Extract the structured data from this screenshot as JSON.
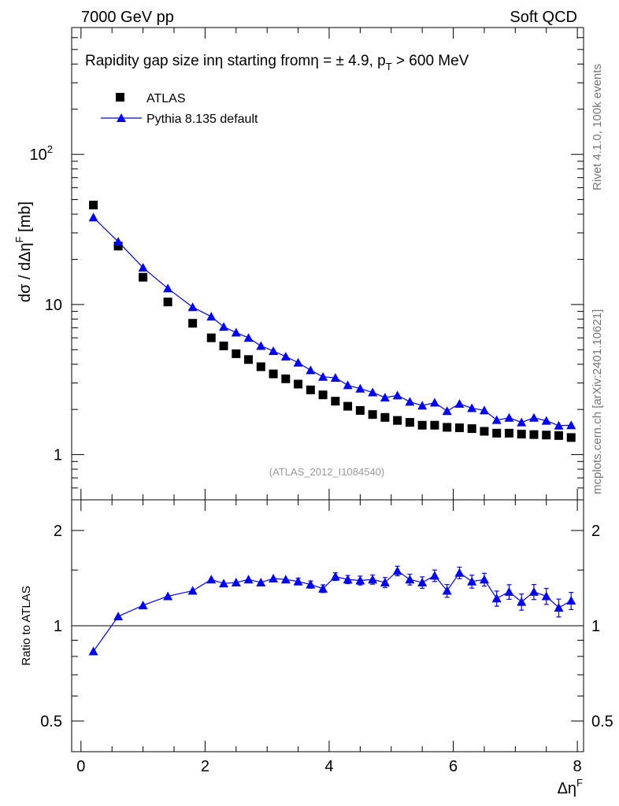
{
  "header": {
    "energy_label": "7000 GeV pp",
    "category_label": "Soft QCD"
  },
  "side_labels": {
    "rivet": "Rivet 4.1.0,  100k events",
    "mcplots": "mcplots.cern.ch [arXiv:2401.10621]"
  },
  "colors": {
    "data": "#000000",
    "mc": "#0000ff",
    "watermark": "#999999"
  },
  "chart_data": [
    {
      "type": "scatter",
      "title_parts": {
        "pre": "Rapidity gap size in",
        "eta1": "η",
        "mid": " starting from",
        "eta2": "η",
        "cond": " = ± 4.9, p",
        "sub": "T",
        "post": " > 600 MeV"
      },
      "ylabel_parts": {
        "main": "dσ / dΔη",
        "sup": "F",
        "unit": " [mb]"
      },
      "yscale": "log",
      "ylim": [
        0.5,
        700
      ],
      "xlim": [
        -0.15,
        8.1
      ],
      "ytick_labels": [
        {
          "value": 1,
          "label": "1"
        },
        {
          "value": 10,
          "label": "10"
        },
        {
          "value": 100,
          "label": "10",
          "sup": "2"
        }
      ],
      "watermark": "(ATLAS_2012_I1084540)",
      "legend": {
        "position": "top-left",
        "entries": [
          {
            "name": "ATLAS",
            "marker": "square"
          },
          {
            "name": "Pythia 8.135 default",
            "marker": "triangle-line"
          }
        ]
      },
      "x": [
        0.2,
        0.6,
        1.0,
        1.4,
        1.8,
        2.1,
        2.3,
        2.5,
        2.7,
        2.9,
        3.1,
        3.3,
        3.5,
        3.7,
        3.9,
        4.1,
        4.3,
        4.5,
        4.7,
        4.9,
        5.1,
        5.3,
        5.5,
        5.7,
        5.9,
        6.1,
        6.3,
        6.5,
        6.7,
        6.9,
        7.1,
        7.3,
        7.5,
        7.7,
        7.9
      ],
      "series": [
        {
          "name": "ATLAS",
          "values": [
            46,
            24.5,
            15.2,
            10.4,
            7.5,
            6.0,
            5.3,
            4.7,
            4.3,
            3.85,
            3.45,
            3.2,
            2.95,
            2.7,
            2.5,
            2.27,
            2.1,
            1.97,
            1.85,
            1.77,
            1.69,
            1.64,
            1.57,
            1.57,
            1.52,
            1.51,
            1.49,
            1.43,
            1.39,
            1.39,
            1.37,
            1.36,
            1.35,
            1.34,
            1.3
          ]
        },
        {
          "name": "Pythia 8.135 default",
          "values": [
            38,
            26.2,
            17.6,
            12.8,
            9.6,
            8.3,
            7.1,
            6.5,
            6.0,
            5.3,
            4.9,
            4.5,
            4.1,
            3.65,
            3.3,
            3.25,
            2.9,
            2.75,
            2.6,
            2.4,
            2.48,
            2.25,
            2.12,
            2.22,
            1.95,
            2.18,
            2.04,
            1.97,
            1.7,
            1.76,
            1.64,
            1.76,
            1.68,
            1.56,
            1.57
          ]
        }
      ]
    },
    {
      "type": "scatter",
      "ylabel": "Ratio to ATLAS",
      "yscale": "log",
      "ylim": [
        0.4,
        2.5
      ],
      "xlim": [
        -0.15,
        8.1
      ],
      "xlabel_parts": {
        "main": "Δη",
        "sup": "F"
      },
      "xtick_labels": [
        "0",
        "2",
        "4",
        "6",
        "8"
      ],
      "ytick_labels": [
        {
          "value": 0.5,
          "label": "0.5"
        },
        {
          "value": 1,
          "label": "1"
        },
        {
          "value": 2,
          "label": "2"
        }
      ],
      "reference_line": 1.0,
      "x": [
        0.2,
        0.6,
        1.0,
        1.4,
        1.8,
        2.1,
        2.3,
        2.5,
        2.7,
        2.9,
        3.1,
        3.3,
        3.5,
        3.7,
        3.9,
        4.1,
        4.3,
        4.5,
        4.7,
        4.9,
        5.1,
        5.3,
        5.5,
        5.7,
        5.9,
        6.1,
        6.3,
        6.5,
        6.7,
        6.9,
        7.1,
        7.3,
        7.5,
        7.7,
        7.9
      ],
      "series": [
        {
          "name": "Pythia 8.135 default / ATLAS",
          "values": [
            0.83,
            1.07,
            1.16,
            1.24,
            1.29,
            1.4,
            1.36,
            1.37,
            1.4,
            1.37,
            1.41,
            1.4,
            1.38,
            1.35,
            1.31,
            1.43,
            1.4,
            1.39,
            1.4,
            1.37,
            1.49,
            1.4,
            1.37,
            1.44,
            1.29,
            1.47,
            1.38,
            1.4,
            1.22,
            1.28,
            1.19,
            1.28,
            1.24,
            1.14,
            1.2
          ],
          "errors": [
            0.01,
            0.012,
            0.013,
            0.015,
            0.017,
            0.02,
            0.022,
            0.024,
            0.025,
            0.027,
            0.03,
            0.032,
            0.033,
            0.035,
            0.037,
            0.04,
            0.042,
            0.045,
            0.047,
            0.05,
            0.052,
            0.055,
            0.057,
            0.06,
            0.06,
            0.062,
            0.065,
            0.065,
            0.067,
            0.068,
            0.07,
            0.07,
            0.072,
            0.074,
            0.075
          ]
        }
      ]
    }
  ]
}
